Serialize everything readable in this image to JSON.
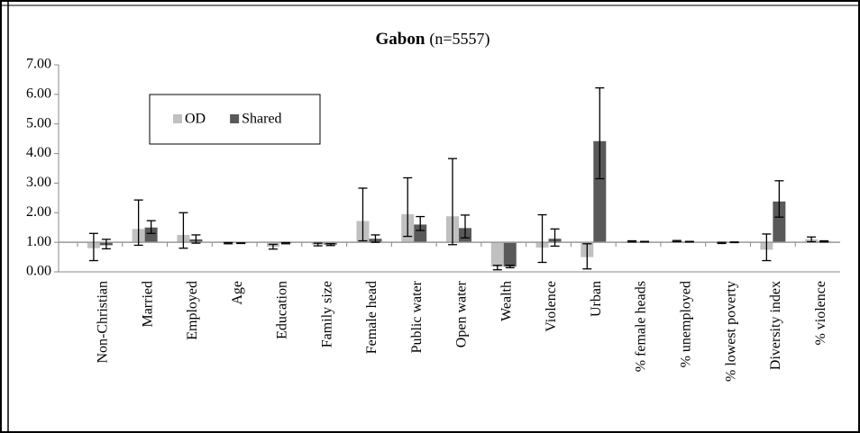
{
  "chart_data": {
    "type": "bar",
    "title": "Gabon",
    "subtitle": "(n=5557)",
    "categories": [
      "Non-Christian",
      "Married",
      "Employed",
      "Age",
      "Education",
      "Family size",
      "Female head",
      "Public water",
      "Open water",
      "Wealth",
      "Violence",
      "Urban",
      "% female heads",
      "% unemployed",
      "% lowest poverty",
      "Diversity index",
      "% violence"
    ],
    "series": [
      {
        "name": "OD",
        "color": "#c0c0c0",
        "values": [
          0.8,
          1.45,
          1.25,
          0.97,
          0.85,
          0.92,
          1.72,
          1.95,
          1.88,
          0.18,
          0.82,
          0.5,
          1.03,
          1.04,
          0.98,
          0.75,
          1.1
        ],
        "lower": [
          0.38,
          0.9,
          0.8,
          0.95,
          0.77,
          0.88,
          1.05,
          1.2,
          0.92,
          0.07,
          0.32,
          0.1,
          1.01,
          1.02,
          0.96,
          0.38,
          1.02
        ],
        "upper": [
          1.3,
          2.43,
          2.0,
          0.99,
          0.93,
          0.97,
          2.83,
          3.18,
          3.83,
          0.22,
          1.93,
          0.95,
          1.05,
          1.06,
          1.0,
          1.28,
          1.18
        ]
      },
      {
        "name": "Shared",
        "color": "#595959",
        "values": [
          0.9,
          1.5,
          1.1,
          0.97,
          0.97,
          0.92,
          1.12,
          1.6,
          1.48,
          0.18,
          1.12,
          4.42,
          1.02,
          1.02,
          1.0,
          2.38,
          1.03
        ],
        "lower": [
          0.78,
          1.3,
          0.97,
          0.96,
          0.95,
          0.89,
          1.0,
          1.4,
          1.15,
          0.14,
          0.87,
          3.15,
          1.01,
          1.01,
          0.99,
          1.85,
          1.01
        ],
        "upper": [
          1.1,
          1.73,
          1.25,
          0.98,
          0.99,
          0.95,
          1.25,
          1.87,
          1.92,
          0.22,
          1.45,
          6.22,
          1.03,
          1.03,
          1.01,
          3.08,
          1.05
        ]
      }
    ],
    "baseline": 1,
    "ylim": [
      0,
      7
    ],
    "yticks": [
      {
        "value": 0,
        "label": "0.00"
      },
      {
        "value": 1,
        "label": "1.00"
      },
      {
        "value": 2,
        "label": "2.00"
      },
      {
        "value": 3,
        "label": "3.00"
      },
      {
        "value": 4,
        "label": "4.00"
      },
      {
        "value": 5,
        "label": "5.00"
      },
      {
        "value": 6,
        "label": "6.00"
      },
      {
        "value": 7,
        "label": "7.00"
      }
    ],
    "legend": "top-left"
  }
}
